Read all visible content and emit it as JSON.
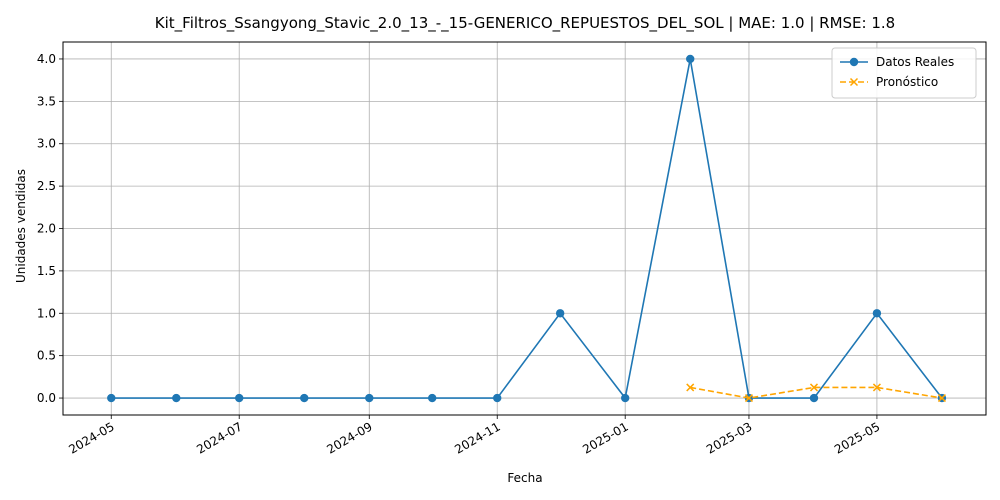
{
  "chart_data": {
    "type": "line",
    "title": "Kit_Filtros_Ssangyong_Stavic_2.0_13_-_15-GENERICO_REPUESTOS_DEL_SOL | MAE: 1.0 | RMSE: 1.8",
    "xlabel": "Fecha",
    "ylabel": "Unidades vendidas",
    "ylim": [
      -0.2,
      4.2
    ],
    "xlim": [
      "2024-04-08",
      "2025-06-22"
    ],
    "grid": true,
    "legend_position": "top-right",
    "x_ticks": [
      "2024-05",
      "2024-07",
      "2024-09",
      "2024-11",
      "2025-01",
      "2025-03",
      "2025-05"
    ],
    "y_ticks": [
      "0.0",
      "0.5",
      "1.0",
      "1.5",
      "2.0",
      "2.5",
      "3.0",
      "3.5",
      "4.0"
    ],
    "series": [
      {
        "name": "Datos Reales",
        "color": "#1f77b4",
        "style": "solid",
        "marker": "circle",
        "x": [
          "2024-05-01",
          "2024-06-01",
          "2024-07-01",
          "2024-08-01",
          "2024-09-01",
          "2024-10-01",
          "2024-11-01",
          "2024-12-01",
          "2025-01-01",
          "2025-02-01",
          "2025-03-01",
          "2025-04-01",
          "2025-05-01",
          "2025-06-01"
        ],
        "y": [
          0,
          0,
          0,
          0,
          0,
          0,
          0,
          1,
          0,
          4,
          0,
          0,
          1,
          0
        ]
      },
      {
        "name": "Pronóstico",
        "color": "#ffa500",
        "style": "dashed",
        "marker": "x",
        "x": [
          "2025-02-01",
          "2025-03-01",
          "2025-04-01",
          "2025-05-01",
          "2025-06-01"
        ],
        "y": [
          0.125,
          0,
          0.125,
          0.125,
          0
        ]
      }
    ]
  }
}
